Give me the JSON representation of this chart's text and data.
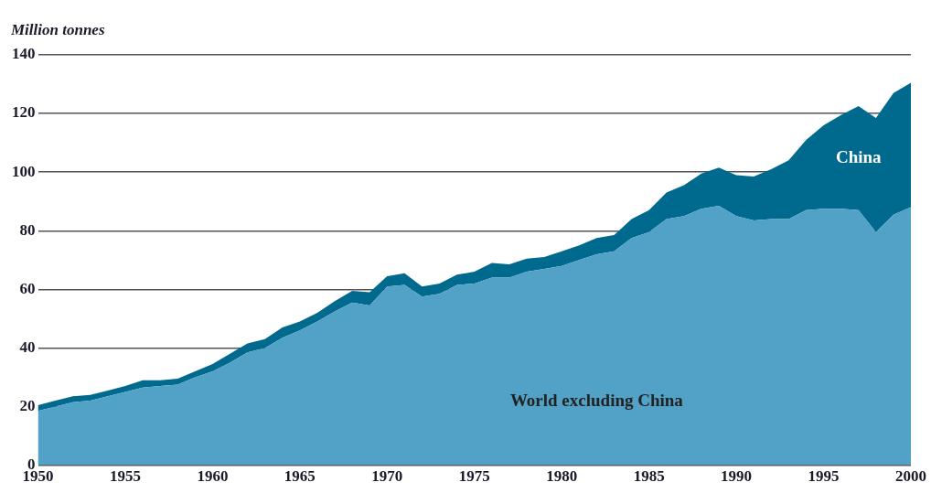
{
  "chart_data": {
    "type": "area",
    "stacked": true,
    "ylabel": "Million tonnes",
    "x": [
      1950,
      1951,
      1952,
      1953,
      1954,
      1955,
      1956,
      1957,
      1958,
      1959,
      1960,
      1961,
      1962,
      1963,
      1964,
      1965,
      1966,
      1967,
      1968,
      1969,
      1970,
      1971,
      1972,
      1973,
      1974,
      1975,
      1976,
      1977,
      1978,
      1979,
      1980,
      1981,
      1982,
      1983,
      1984,
      1985,
      1986,
      1987,
      1988,
      1989,
      1990,
      1991,
      1992,
      1993,
      1994,
      1995,
      1996,
      1997,
      1998,
      1999,
      2000
    ],
    "series": [
      {
        "name": "World excluding China",
        "color": "#52a2c8",
        "values": [
          18.5,
          20,
          21.5,
          22,
          23.5,
          25,
          26.5,
          27,
          27.5,
          30,
          32,
          35,
          38.5,
          40,
          43.5,
          46,
          49,
          52.5,
          55.5,
          54.5,
          61,
          61.5,
          57.5,
          58.5,
          61.5,
          62,
          64,
          64,
          66,
          67,
          68,
          70,
          72,
          73,
          77.5,
          79.5,
          84,
          85,
          87.5,
          88.5,
          85,
          83.5,
          84,
          84,
          87,
          87.5,
          87.5,
          87,
          79.5,
          85.5,
          88
        ]
      },
      {
        "name": "China",
        "color": "#006a8e",
        "values": [
          2,
          2,
          2,
          2,
          2,
          2,
          2.5,
          2,
          2,
          2,
          2.5,
          3,
          3,
          3,
          3.5,
          3,
          3,
          3.5,
          4,
          4.5,
          3.5,
          4,
          3.5,
          3.5,
          3.5,
          4,
          5,
          4.5,
          4.5,
          4,
          5,
          5,
          5.5,
          5.5,
          6.5,
          7.5,
          9,
          10.5,
          12,
          13,
          14,
          15,
          17,
          20,
          24,
          28.5,
          32,
          35.5,
          39,
          41.5,
          42.5
        ]
      }
    ],
    "xlim": [
      1950,
      2000
    ],
    "xticks": [
      1950,
      1955,
      1960,
      1965,
      1970,
      1975,
      1980,
      1985,
      1990,
      1995,
      2000
    ],
    "ylim": [
      0,
      140
    ],
    "yticks": [
      0,
      20,
      40,
      60,
      80,
      100,
      120,
      140
    ],
    "grid": "y",
    "legend": false,
    "marker": "none"
  }
}
